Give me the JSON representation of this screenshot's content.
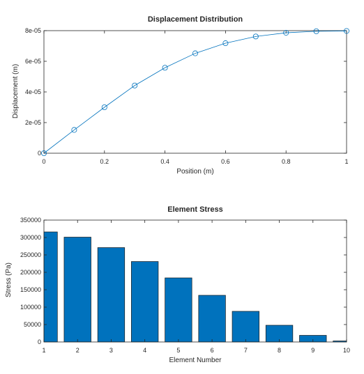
{
  "chart_data": [
    {
      "type": "line",
      "title": "Displacement Distribution",
      "xlabel": "Position (m)",
      "ylabel": "Displacement (m)",
      "xlim": [
        0,
        1
      ],
      "ylim": [
        0,
        8e-05
      ],
      "xticks": [
        0,
        0.2,
        0.4,
        0.6,
        0.8,
        1
      ],
      "xtick_labels": [
        "0",
        "0.2",
        "0.4",
        "0.6",
        "0.8",
        "1"
      ],
      "yticks": [
        0,
        2e-05,
        4e-05,
        6e-05,
        8e-05
      ],
      "ytick_labels": [
        "0",
        "2e-05",
        "4e-05",
        "6e-05",
        "8e-05"
      ],
      "grid": false,
      "marker": "circle",
      "color": "#0072BD",
      "x": [
        0,
        0.1,
        0.2,
        0.3,
        0.4,
        0.5,
        0.6,
        0.7,
        0.8,
        0.9,
        1.0
      ],
      "y": [
        0,
        1.52e-05,
        3e-05,
        4.42e-05,
        5.58e-05,
        6.52e-05,
        7.18e-05,
        7.62e-05,
        7.86e-05,
        7.96e-05,
        7.98e-05
      ]
    },
    {
      "type": "bar",
      "title": "Element Stress",
      "xlabel": "Element Number",
      "ylabel": "Stress (Pa)",
      "xlim": [
        1,
        10
      ],
      "ylim": [
        0,
        350000
      ],
      "xticks": [
        1,
        2,
        3,
        4,
        5,
        6,
        7,
        8,
        9,
        10
      ],
      "xtick_labels": [
        "1",
        "2",
        "3",
        "4",
        "5",
        "6",
        "7",
        "8",
        "9",
        "10"
      ],
      "yticks": [
        0,
        50000,
        100000,
        150000,
        200000,
        250000,
        300000,
        350000
      ],
      "ytick_labels": [
        "0",
        "50000",
        "100000",
        "150000",
        "200000",
        "250000",
        "300000",
        "350000"
      ],
      "grid": false,
      "color": "#0072BD",
      "categories": [
        1,
        2,
        3,
        4,
        5,
        6,
        7,
        8,
        9,
        10
      ],
      "values": [
        316000,
        301000,
        271000,
        231000,
        184000,
        134000,
        88000,
        48000,
        19000,
        3000
      ]
    }
  ]
}
